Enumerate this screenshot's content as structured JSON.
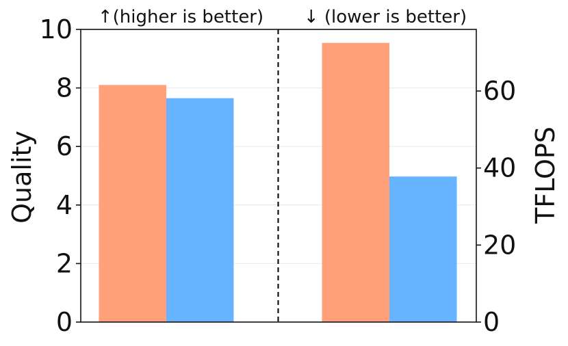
{
  "chart_data": {
    "type": "bar",
    "grid": true,
    "groups": [
      {
        "annotation": "↑(higher is better)",
        "axis": "left",
        "values": [
          8.1,
          7.65
        ],
        "colors": [
          "#FFA07A",
          "#66B3FF"
        ]
      },
      {
        "annotation": "↓ (lower is better)",
        "axis": "right",
        "values": [
          72.5,
          37.8
        ],
        "colors": [
          "#FFA07A",
          "#66B3FF"
        ]
      }
    ],
    "left_axis": {
      "label": "Quality",
      "ylim": [
        0,
        10
      ],
      "ticks": [
        "0",
        "2",
        "4",
        "6",
        "8",
        "10"
      ]
    },
    "right_axis": {
      "label": "TFLOPS",
      "ylim": [
        0,
        76
      ],
      "ticks": [
        "0",
        "20",
        "40",
        "60"
      ]
    }
  }
}
